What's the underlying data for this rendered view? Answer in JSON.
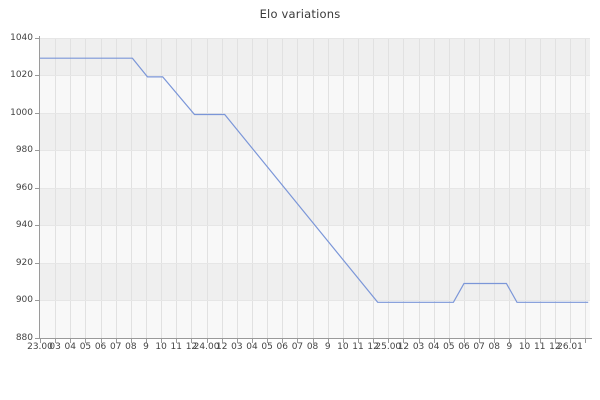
{
  "chart_data": {
    "type": "line",
    "title": "Elo variations",
    "xlabel": "",
    "ylabel": "",
    "ylim": [
      880,
      1040
    ],
    "y_ticks": [
      1040,
      1020,
      1000,
      980,
      960,
      940,
      920,
      900,
      880
    ],
    "x_tick_labels": [
      "23.00",
      "03",
      "04",
      "05",
      "06",
      "07",
      "08",
      "9",
      "10",
      "11",
      "12",
      "24.00",
      "12",
      "03",
      "04",
      "05",
      "06",
      "07",
      "08",
      "9",
      "10",
      "11",
      "12",
      "25.00",
      "12",
      "03",
      "04",
      "05",
      "06",
      "07",
      "08",
      "9",
      "10",
      "11",
      "12",
      "26.01"
    ],
    "grid": true,
    "legend": false,
    "band_fill": "alternating horizontal 20-point bands, top band shaded",
    "series": [
      {
        "name": "elo",
        "color": "#7b96d8",
        "plateaus": [
          1029,
          1019,
          999,
          899,
          909,
          899
        ],
        "polyline": [
          {
            "t": 0,
            "elo": 1029
          },
          {
            "t": 6.1,
            "elo": 1029
          },
          {
            "t": 7.1,
            "elo": 1019
          },
          {
            "t": 8.1,
            "elo": 1019
          },
          {
            "t": 10.2,
            "elo": 999
          },
          {
            "t": 12.2,
            "elo": 999
          },
          {
            "t": 22.3,
            "elo": 899
          },
          {
            "t": 27.3,
            "elo": 899
          },
          {
            "t": 28,
            "elo": 909
          },
          {
            "t": 30.8,
            "elo": 909
          },
          {
            "t": 31.5,
            "elo": 899
          },
          {
            "t": 36.2,
            "elo": 899
          }
        ]
      }
    ]
  },
  "colors": {
    "line": "#7b96d8",
    "band_dark": "#efefef",
    "band_light": "#f8f8f8",
    "gridline": "#e1e1e1",
    "hgridline": "#e6e6e6",
    "axis": "#9a9a9a",
    "text": "#444444",
    "title_text": "#3a3a3a",
    "background": "#ffffff"
  }
}
